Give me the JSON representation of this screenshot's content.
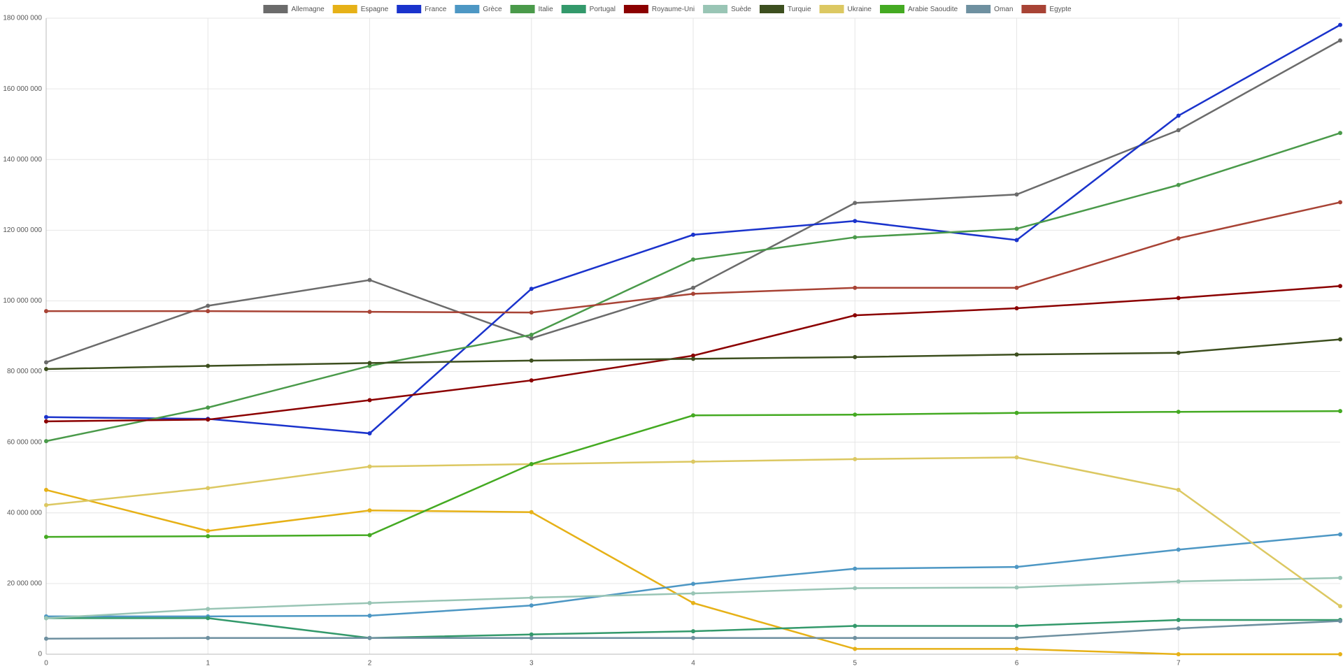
{
  "chart_data": {
    "type": "line",
    "x": [
      0,
      1,
      2,
      3,
      4,
      5,
      6,
      7,
      8
    ],
    "xlim": [
      0,
      8
    ],
    "xticks": [
      0,
      1,
      2,
      3,
      4,
      5,
      6,
      7
    ],
    "ylim": [
      0,
      180000000
    ],
    "yticks": [
      {
        "value": 0,
        "label": "0"
      },
      {
        "value": 20000000,
        "label": "20 000 000"
      },
      {
        "value": 40000000,
        "label": "40 000 000"
      },
      {
        "value": 60000000,
        "label": "60 000 000"
      },
      {
        "value": 80000000,
        "label": "80 000 000"
      },
      {
        "value": 100000000,
        "label": "100 000 000"
      },
      {
        "value": 120000000,
        "label": "120 000 000"
      },
      {
        "value": 140000000,
        "label": "140 000 000"
      },
      {
        "value": 160000000,
        "label": "160 000 000"
      },
      {
        "value": 180000000,
        "label": "180 000 000"
      }
    ],
    "grid": true,
    "legend": "top",
    "series": [
      {
        "name": "Allemagne",
        "color": "#6b6b6b",
        "values": [
          82600000,
          98600000,
          105900000,
          89400000,
          103700000,
          127700000,
          130100000,
          148300000,
          173700000
        ]
      },
      {
        "name": "Espagne",
        "color": "#e6b117",
        "values": [
          46500000,
          34900000,
          40700000,
          40200000,
          14500000,
          1500000,
          1500000,
          0,
          0
        ]
      },
      {
        "name": "France",
        "color": "#1a33cc",
        "values": [
          67100000,
          66600000,
          62500000,
          103400000,
          118700000,
          122600000,
          117200000,
          152400000,
          178100000
        ]
      },
      {
        "name": "Grèce",
        "color": "#4d97c4",
        "values": [
          10700000,
          10700000,
          10900000,
          13800000,
          19900000,
          24200000,
          24700000,
          29600000,
          33900000
        ]
      },
      {
        "name": "Italie",
        "color": "#4a9a4a",
        "values": [
          60300000,
          69800000,
          81600000,
          90400000,
          111700000,
          118000000,
          120400000,
          132800000,
          147500000
        ]
      },
      {
        "name": "Portugal",
        "color": "#33996b",
        "values": [
          10200000,
          10200000,
          4600000,
          5600000,
          6500000,
          8000000,
          8000000,
          9700000,
          9700000
        ]
      },
      {
        "name": "Royaume-Uni",
        "color": "#8b0000",
        "values": [
          65900000,
          66400000,
          71900000,
          77500000,
          84500000,
          95900000,
          97900000,
          100800000,
          104200000
        ]
      },
      {
        "name": "Suède",
        "color": "#99c5b5",
        "values": [
          10200000,
          12800000,
          14500000,
          16000000,
          17200000,
          18700000,
          18900000,
          20600000,
          21600000
        ]
      },
      {
        "name": "Turquie",
        "color": "#3d4f1f",
        "values": [
          80700000,
          81600000,
          82400000,
          83100000,
          83600000,
          84100000,
          84800000,
          85300000,
          89100000
        ]
      },
      {
        "name": "Ukraine",
        "color": "#dcc862",
        "values": [
          42200000,
          47000000,
          53100000,
          53800000,
          54500000,
          55200000,
          55700000,
          46500000,
          13600000
        ]
      },
      {
        "name": "Arabie Saoudite",
        "color": "#44aa22",
        "values": [
          33200000,
          33400000,
          33700000,
          53800000,
          67600000,
          67800000,
          68300000,
          68600000,
          68800000
        ]
      },
      {
        "name": "Oman",
        "color": "#6e90a0",
        "values": [
          4400000,
          4600000,
          4600000,
          4600000,
          4600000,
          4600000,
          4600000,
          7300000,
          9400000
        ]
      },
      {
        "name": "Egypte",
        "color": "#a84335",
        "values": [
          97100000,
          97100000,
          96900000,
          96700000,
          102000000,
          103700000,
          103700000,
          117700000,
          127900000
        ]
      }
    ]
  }
}
